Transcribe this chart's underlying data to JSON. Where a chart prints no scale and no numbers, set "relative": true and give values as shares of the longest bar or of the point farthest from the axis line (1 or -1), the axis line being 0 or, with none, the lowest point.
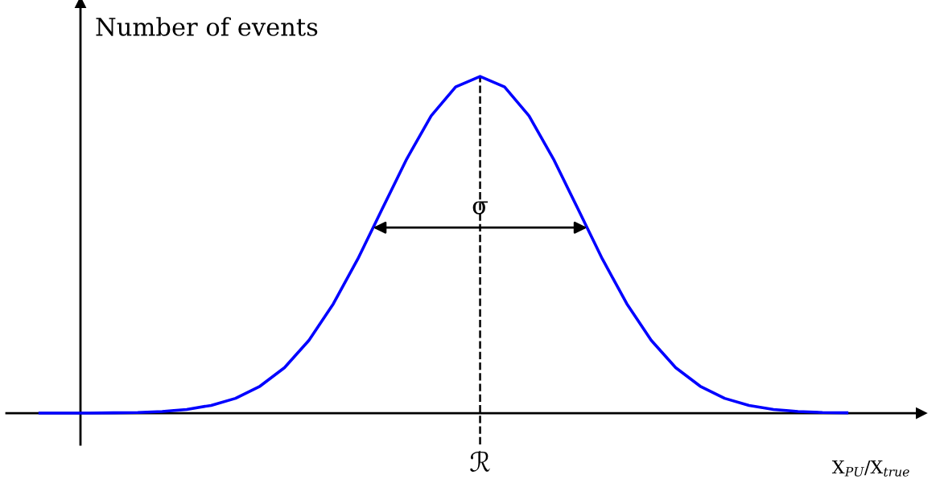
{
  "chart_data": {
    "type": "line",
    "relative": true,
    "ylabel": "Number of events",
    "xlabel": "X$_{PU}$/X$_{true}$",
    "categories": [
      null,
      null,
      null,
      null,
      null,
      null,
      null,
      null,
      null,
      null,
      null,
      null,
      null,
      null,
      null,
      null,
      null,
      null,
      null,
      null,
      null,
      null,
      null,
      null,
      null,
      null,
      null,
      null,
      null,
      null,
      null,
      null,
      null,
      null
    ],
    "series": [
      {
        "color": "#0000ff",
        "values": [
          0.0,
          0.0,
          0.0,
          0.001,
          0.002,
          0.005,
          0.011,
          0.023,
          0.044,
          0.08,
          0.135,
          0.216,
          0.325,
          0.458,
          0.607,
          0.755,
          0.883,
          0.969,
          1.0,
          0.969,
          0.883,
          0.755,
          0.607,
          0.458,
          0.325,
          0.216,
          0.135,
          0.08,
          0.044,
          0.023,
          0.011,
          0.005,
          0.002,
          0.001
        ]
      }
    ],
    "annotations": [
      "σ",
      "ℛ"
    ]
  }
}
